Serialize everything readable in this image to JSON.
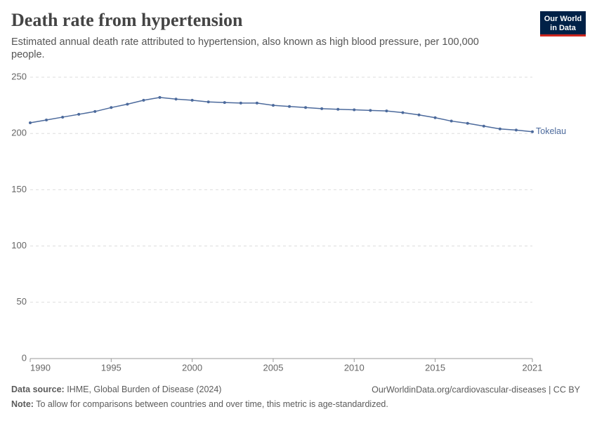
{
  "header": {
    "title": "Death rate from hypertension",
    "subtitle": "Estimated annual death rate attributed to hypertension, also known as high blood pressure, per 100,000 people.",
    "logo": [
      "Our World",
      "in Data"
    ]
  },
  "chart_data": {
    "type": "line",
    "x": [
      1990,
      1991,
      1992,
      1993,
      1994,
      1995,
      1996,
      1997,
      1998,
      1999,
      2000,
      2001,
      2002,
      2003,
      2004,
      2005,
      2006,
      2007,
      2008,
      2009,
      2010,
      2011,
      2012,
      2013,
      2014,
      2015,
      2016,
      2017,
      2018,
      2019,
      2020,
      2021
    ],
    "series": [
      {
        "name": "Tokelau",
        "color": "#4c6a9c",
        "values": [
          209.5,
          212,
          214.5,
          217,
          219.5,
          223,
          226,
          229.5,
          232,
          230.5,
          229.5,
          228,
          227.5,
          227,
          227,
          225,
          224,
          223,
          222,
          221.5,
          221,
          220.5,
          220,
          218.5,
          216.5,
          214,
          211,
          209,
          206.5,
          204,
          203,
          201.5
        ]
      }
    ],
    "xlim": [
      1990,
      2021
    ],
    "xticks": [
      1990,
      1995,
      2000,
      2005,
      2010,
      2015,
      2021
    ],
    "ylim": [
      0,
      250
    ],
    "yticks": [
      0,
      50,
      100,
      150,
      200,
      250
    ],
    "grid": true
  },
  "footer": {
    "source_label": "Data source:",
    "source": "IHME, Global Burden of Disease (2024)",
    "url": "OurWorldinData.org/cardiovascular-diseases | CC BY",
    "note_label": "Note:",
    "note": "To allow for comparisons between countries and over time, this metric is age-standardized."
  }
}
